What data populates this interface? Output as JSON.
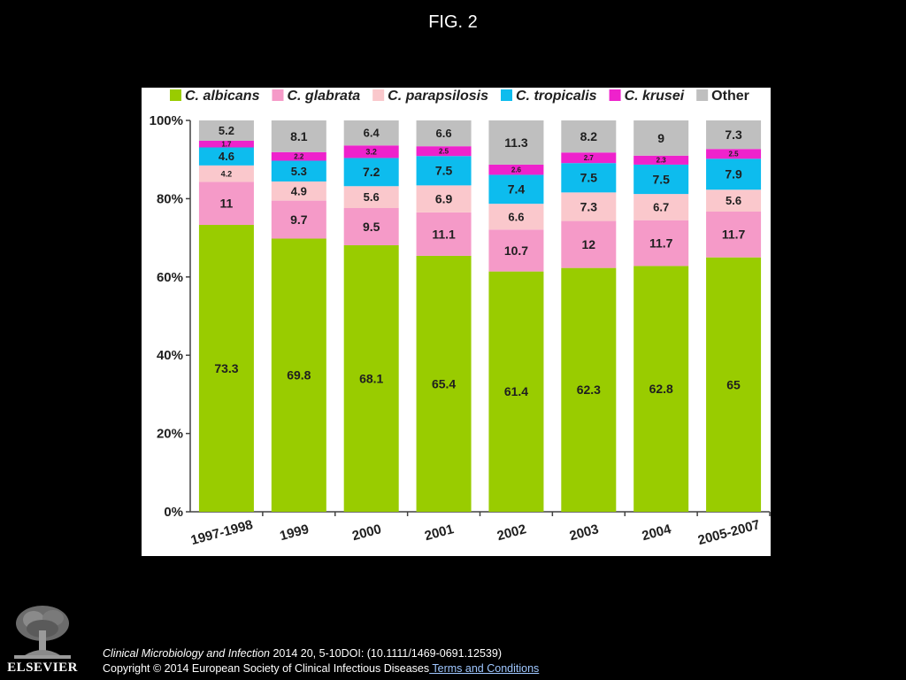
{
  "figure_title": "FIG. 2",
  "colors": {
    "background": "#000000",
    "panel": "#ffffff",
    "axis": "#404040",
    "link": "#9fc7ff"
  },
  "chart_data": {
    "type": "bar",
    "stacked": true,
    "title": "",
    "xlabel": "",
    "ylabel": "",
    "ylim": [
      0,
      100
    ],
    "yticks": [
      "0%",
      "20%",
      "40%",
      "60%",
      "80%",
      "100%"
    ],
    "legend_position": "top",
    "grid": false,
    "categories": [
      "1997-1998",
      "1999",
      "2000",
      "2001",
      "2002",
      "2003",
      "2004",
      "2005-2007"
    ],
    "series": [
      {
        "name": "C. albicans",
        "color": "#99cc00",
        "values": [
          73.3,
          69.8,
          68.1,
          65.4,
          61.4,
          62.3,
          62.8,
          65
        ],
        "labels": [
          "73.3",
          "69.8",
          "68.1",
          "65.4",
          "61.4",
          "62.3",
          "62.8",
          "65"
        ]
      },
      {
        "name": "C. glabrata",
        "color": "#f59ac8",
        "values": [
          11,
          9.7,
          9.5,
          11.1,
          10.7,
          12,
          11.7,
          11.7
        ],
        "labels": [
          "11",
          "9.7",
          "9.5",
          "11.1",
          "10.7",
          "12",
          "11.7",
          "11.7"
        ]
      },
      {
        "name": "C. parapsilosis",
        "color": "#fac8cc",
        "values": [
          4.2,
          4.9,
          5.6,
          6.9,
          6.6,
          7.3,
          6.7,
          5.6
        ],
        "labels": [
          "4.2",
          "4.9",
          "5.6",
          "6.9",
          "6.6",
          "7.3",
          "6.7",
          "5.6"
        ]
      },
      {
        "name": "C. tropicalis",
        "color": "#0dbcee",
        "values": [
          4.6,
          5.3,
          7.2,
          7.5,
          7.4,
          7.5,
          7.5,
          7.9
        ],
        "labels": [
          "4.6",
          "5.3",
          "7.2",
          "7.5",
          "7.4",
          "7.5",
          "7.5",
          "7.9"
        ]
      },
      {
        "name": "C. krusei",
        "color": "#ee22cc",
        "values": [
          1.7,
          2.2,
          3.2,
          2.5,
          2.6,
          2.7,
          2.3,
          2.5
        ],
        "labels": [
          "1.7",
          "2.2",
          "3.2",
          "2.5",
          "2.6",
          "2.7",
          "2.3",
          "2.5"
        ]
      },
      {
        "name": "Other",
        "color": "#bfbfbf",
        "values": [
          5.2,
          8.1,
          6.4,
          6.6,
          11.3,
          8.2,
          9,
          7.3
        ],
        "labels": [
          "5.2",
          "8.1",
          "6.4",
          "6.6",
          "11.3",
          "8.2",
          "9",
          "7.3"
        ]
      }
    ]
  },
  "footer": {
    "journal": "Clinical Microbiology and Infection",
    "citation": " 2014 20, 5-10DOI: (10.1111/1469-0691.12539)",
    "copyright": "Copyright © 2014 European Society of Clinical Infectious Diseases",
    "terms_link": " Terms and Conditions"
  },
  "publisher": {
    "name": "ELSEVIER",
    "logo_icon": "elsevier-tree-icon"
  }
}
